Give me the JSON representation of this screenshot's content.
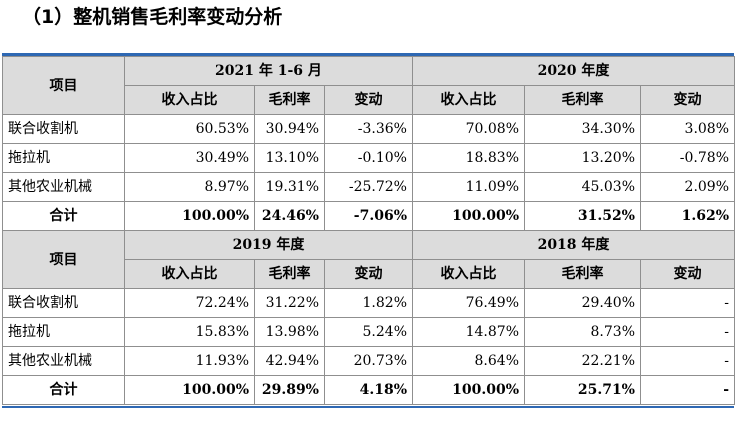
{
  "heading": "（1）整机销售毛利率变动分析",
  "item_label": "项目",
  "col_labels": [
    "收入占比",
    "毛利率",
    "变动"
  ],
  "blocks": [
    {
      "periods": [
        "2021 年 1-6 月",
        "2020 年度"
      ],
      "rows": [
        {
          "label": "联合收割机",
          "v": [
            "60.53%",
            "30.94%",
            "-3.36%",
            "70.08%",
            "34.30%",
            "3.08%"
          ]
        },
        {
          "label": "拖拉机",
          "v": [
            "30.49%",
            "13.10%",
            "-0.10%",
            "18.83%",
            "13.20%",
            "-0.78%"
          ]
        },
        {
          "label": "其他农业机械",
          "v": [
            "8.97%",
            "19.31%",
            "-25.72%",
            "11.09%",
            "45.03%",
            "2.09%"
          ]
        }
      ],
      "total": {
        "label": "合计",
        "v": [
          "100.00%",
          "24.46%",
          "-7.06%",
          "100.00%",
          "31.52%",
          "1.62%"
        ]
      }
    },
    {
      "periods": [
        "2019 年度",
        "2018 年度"
      ],
      "rows": [
        {
          "label": "联合收割机",
          "v": [
            "72.24%",
            "31.22%",
            "1.82%",
            "76.49%",
            "29.40%",
            "-"
          ]
        },
        {
          "label": "拖拉机",
          "v": [
            "15.83%",
            "13.98%",
            "5.24%",
            "14.87%",
            "8.73%",
            "-"
          ]
        },
        {
          "label": "其他农业机械",
          "v": [
            "11.93%",
            "42.94%",
            "20.73%",
            "8.64%",
            "22.21%",
            "-"
          ]
        }
      ],
      "total": {
        "label": "合计",
        "v": [
          "100.00%",
          "29.89%",
          "4.18%",
          "100.00%",
          "25.71%",
          "-"
        ]
      }
    }
  ]
}
